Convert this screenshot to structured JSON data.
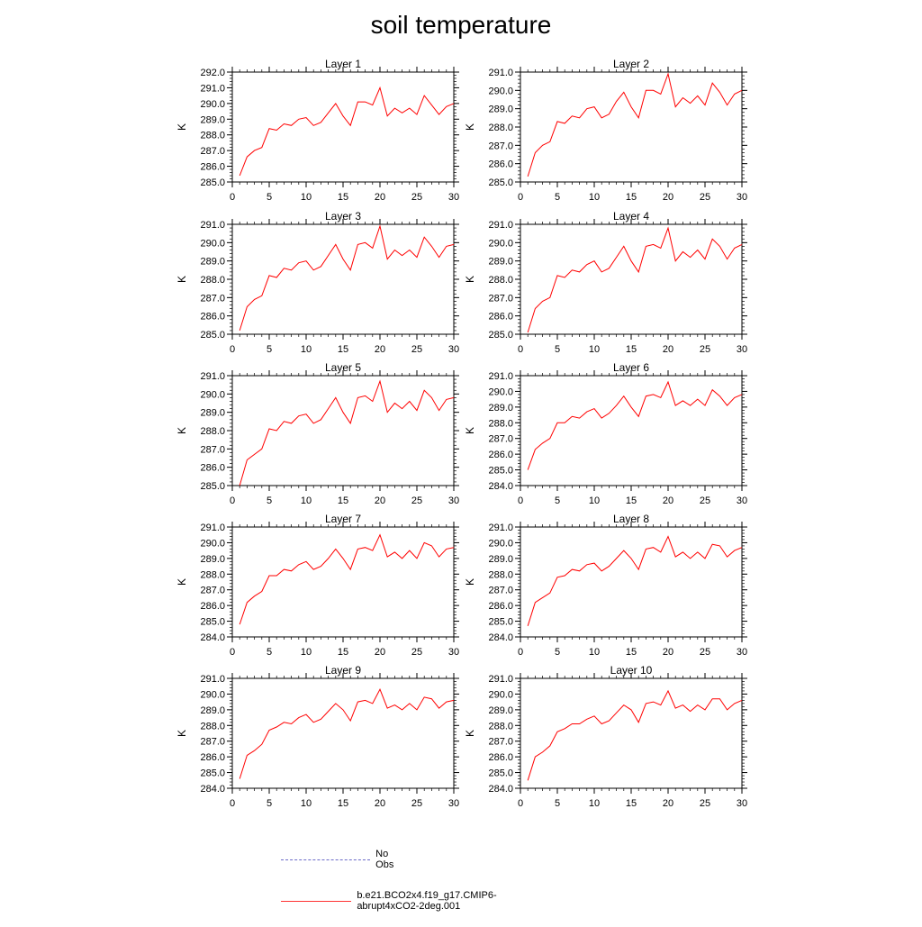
{
  "title": "soil temperature",
  "legend": {
    "obs_label": "No Obs",
    "model_label": "b.e21.BCO2x4.f19_g17.CMIP6-abrupt4xCO2-2deg.001",
    "obs_color": "#6a6ac8",
    "model_color": "#ff0000"
  },
  "chart_data": [
    {
      "type": "line",
      "title": "Layer 1",
      "ylabel": "K",
      "xlim": [
        0,
        30
      ],
      "ylim": [
        285,
        292
      ],
      "xticks": [
        0,
        5,
        10,
        15,
        20,
        25,
        30
      ],
      "yticks": [
        "285.0",
        "286.0",
        "287.0",
        "288.0",
        "289.0",
        "290.0",
        "291.0",
        "292.0"
      ],
      "x": [
        1,
        2,
        3,
        4,
        5,
        6,
        7,
        8,
        9,
        10,
        11,
        12,
        13,
        14,
        15,
        16,
        17,
        18,
        19,
        20,
        21,
        22,
        23,
        24,
        25,
        26,
        27,
        28,
        29,
        30
      ],
      "series": [
        {
          "values": [
            285.4,
            286.6,
            287.0,
            287.2,
            288.4,
            288.3,
            288.7,
            288.6,
            289.0,
            289.1,
            288.6,
            288.8,
            289.4,
            290.0,
            289.2,
            288.6,
            290.1,
            290.1,
            289.9,
            291.0,
            289.2,
            289.7,
            289.4,
            289.7,
            289.3,
            290.5,
            289.9,
            289.3,
            289.8,
            290.0
          ]
        }
      ]
    },
    {
      "type": "line",
      "title": "Layer 2",
      "ylabel": "K",
      "xlim": [
        0,
        30
      ],
      "ylim": [
        285,
        291
      ],
      "xticks": [
        0,
        5,
        10,
        15,
        20,
        25,
        30
      ],
      "yticks": [
        "285.0",
        "286.0",
        "287.0",
        "288.0",
        "289.0",
        "290.0",
        "291.0"
      ],
      "x": [
        1,
        2,
        3,
        4,
        5,
        6,
        7,
        8,
        9,
        10,
        11,
        12,
        13,
        14,
        15,
        16,
        17,
        18,
        19,
        20,
        21,
        22,
        23,
        24,
        25,
        26,
        27,
        28,
        29,
        30
      ],
      "series": [
        {
          "values": [
            285.3,
            286.6,
            287.0,
            287.2,
            288.3,
            288.2,
            288.6,
            288.5,
            289.0,
            289.1,
            288.5,
            288.7,
            289.4,
            289.9,
            289.1,
            288.5,
            290.0,
            290.0,
            289.8,
            290.9,
            289.1,
            289.6,
            289.3,
            289.7,
            289.2,
            290.4,
            289.9,
            289.2,
            289.8,
            290.0
          ]
        }
      ]
    },
    {
      "type": "line",
      "title": "Layer 3",
      "ylabel": "K",
      "xlim": [
        0,
        30
      ],
      "ylim": [
        285,
        291
      ],
      "xticks": [
        0,
        5,
        10,
        15,
        20,
        25,
        30
      ],
      "yticks": [
        "285.0",
        "286.0",
        "287.0",
        "288.0",
        "289.0",
        "290.0",
        "291.0"
      ],
      "x": [
        1,
        2,
        3,
        4,
        5,
        6,
        7,
        8,
        9,
        10,
        11,
        12,
        13,
        14,
        15,
        16,
        17,
        18,
        19,
        20,
        21,
        22,
        23,
        24,
        25,
        26,
        27,
        28,
        29,
        30
      ],
      "series": [
        {
          "values": [
            285.2,
            286.5,
            286.9,
            287.1,
            288.2,
            288.1,
            288.6,
            288.5,
            288.9,
            289.0,
            288.5,
            288.7,
            289.3,
            289.9,
            289.1,
            288.5,
            289.9,
            290.0,
            289.7,
            290.9,
            289.1,
            289.6,
            289.3,
            289.6,
            289.2,
            290.3,
            289.8,
            289.2,
            289.8,
            289.9
          ]
        }
      ]
    },
    {
      "type": "line",
      "title": "Layer 4",
      "ylabel": "K",
      "xlim": [
        0,
        30
      ],
      "ylim": [
        285,
        291
      ],
      "xticks": [
        0,
        5,
        10,
        15,
        20,
        25,
        30
      ],
      "yticks": [
        "285.0",
        "286.0",
        "287.0",
        "288.0",
        "289.0",
        "290.0",
        "291.0"
      ],
      "x": [
        1,
        2,
        3,
        4,
        5,
        6,
        7,
        8,
        9,
        10,
        11,
        12,
        13,
        14,
        15,
        16,
        17,
        18,
        19,
        20,
        21,
        22,
        23,
        24,
        25,
        26,
        27,
        28,
        29,
        30
      ],
      "series": [
        {
          "values": [
            285.1,
            286.4,
            286.8,
            287.0,
            288.2,
            288.1,
            288.5,
            288.4,
            288.8,
            289.0,
            288.4,
            288.6,
            289.2,
            289.8,
            289.0,
            288.4,
            289.8,
            289.9,
            289.7,
            290.8,
            289.0,
            289.5,
            289.2,
            289.6,
            289.1,
            290.2,
            289.8,
            289.1,
            289.7,
            289.9
          ]
        }
      ]
    },
    {
      "type": "line",
      "title": "Layer 5",
      "ylabel": "K",
      "xlim": [
        0,
        30
      ],
      "ylim": [
        285,
        291
      ],
      "xticks": [
        0,
        5,
        10,
        15,
        20,
        25,
        30
      ],
      "yticks": [
        "285.0",
        "286.0",
        "287.0",
        "288.0",
        "289.0",
        "290.0",
        "291.0"
      ],
      "x": [
        1,
        2,
        3,
        4,
        5,
        6,
        7,
        8,
        9,
        10,
        11,
        12,
        13,
        14,
        15,
        16,
        17,
        18,
        19,
        20,
        21,
        22,
        23,
        24,
        25,
        26,
        27,
        28,
        29,
        30
      ],
      "series": [
        {
          "values": [
            285.0,
            286.4,
            286.7,
            287.0,
            288.1,
            288.0,
            288.5,
            288.4,
            288.8,
            288.9,
            288.4,
            288.6,
            289.2,
            289.8,
            289.0,
            288.4,
            289.8,
            289.9,
            289.6,
            290.7,
            289.0,
            289.5,
            289.2,
            289.6,
            289.1,
            290.2,
            289.8,
            289.1,
            289.7,
            289.8
          ]
        }
      ]
    },
    {
      "type": "line",
      "title": "Layer 6",
      "ylabel": "K",
      "xlim": [
        0,
        30
      ],
      "ylim": [
        284,
        291
      ],
      "xticks": [
        0,
        5,
        10,
        15,
        20,
        25,
        30
      ],
      "yticks": [
        "284.0",
        "285.0",
        "286.0",
        "287.0",
        "288.0",
        "289.0",
        "290.0",
        "291.0"
      ],
      "x": [
        1,
        2,
        3,
        4,
        5,
        6,
        7,
        8,
        9,
        10,
        11,
        12,
        13,
        14,
        15,
        16,
        17,
        18,
        19,
        20,
        21,
        22,
        23,
        24,
        25,
        26,
        27,
        28,
        29,
        30
      ],
      "series": [
        {
          "values": [
            285.0,
            286.3,
            286.7,
            287.0,
            288.0,
            288.0,
            288.4,
            288.3,
            288.7,
            288.9,
            288.3,
            288.6,
            289.1,
            289.7,
            289.0,
            288.4,
            289.7,
            289.8,
            289.6,
            290.6,
            289.1,
            289.4,
            289.1,
            289.5,
            289.1,
            290.1,
            289.7,
            289.1,
            289.6,
            289.8
          ]
        }
      ]
    },
    {
      "type": "line",
      "title": "Layer 7",
      "ylabel": "K",
      "xlim": [
        0,
        30
      ],
      "ylim": [
        284,
        291
      ],
      "xticks": [
        0,
        5,
        10,
        15,
        20,
        25,
        30
      ],
      "yticks": [
        "284.0",
        "285.0",
        "286.0",
        "287.0",
        "288.0",
        "289.0",
        "290.0",
        "291.0"
      ],
      "x": [
        1,
        2,
        3,
        4,
        5,
        6,
        7,
        8,
        9,
        10,
        11,
        12,
        13,
        14,
        15,
        16,
        17,
        18,
        19,
        20,
        21,
        22,
        23,
        24,
        25,
        26,
        27,
        28,
        29,
        30
      ],
      "series": [
        {
          "values": [
            284.8,
            286.2,
            286.6,
            286.9,
            287.9,
            287.9,
            288.3,
            288.2,
            288.6,
            288.8,
            288.3,
            288.5,
            289.0,
            289.6,
            289.0,
            288.3,
            289.6,
            289.7,
            289.5,
            290.5,
            289.1,
            289.4,
            289.0,
            289.5,
            289.0,
            290.0,
            289.8,
            289.1,
            289.6,
            289.7
          ]
        }
      ]
    },
    {
      "type": "line",
      "title": "Layer 8",
      "ylabel": "K",
      "xlim": [
        0,
        30
      ],
      "ylim": [
        284,
        291
      ],
      "xticks": [
        0,
        5,
        10,
        15,
        20,
        25,
        30
      ],
      "yticks": [
        "284.0",
        "285.0",
        "286.0",
        "287.0",
        "288.0",
        "289.0",
        "290.0",
        "291.0"
      ],
      "x": [
        1,
        2,
        3,
        4,
        5,
        6,
        7,
        8,
        9,
        10,
        11,
        12,
        13,
        14,
        15,
        16,
        17,
        18,
        19,
        20,
        21,
        22,
        23,
        24,
        25,
        26,
        27,
        28,
        29,
        30
      ],
      "series": [
        {
          "values": [
            284.7,
            286.2,
            286.5,
            286.8,
            287.8,
            287.9,
            288.3,
            288.2,
            288.6,
            288.7,
            288.2,
            288.5,
            289.0,
            289.5,
            289.0,
            288.3,
            289.6,
            289.7,
            289.4,
            290.4,
            289.1,
            289.4,
            289.0,
            289.4,
            289.0,
            289.9,
            289.8,
            289.1,
            289.5,
            289.7
          ]
        }
      ]
    },
    {
      "type": "line",
      "title": "Layer 9",
      "ylabel": "K",
      "xlim": [
        0,
        30
      ],
      "ylim": [
        284,
        291
      ],
      "xticks": [
        0,
        5,
        10,
        15,
        20,
        25,
        30
      ],
      "yticks": [
        "284.0",
        "285.0",
        "286.0",
        "287.0",
        "288.0",
        "289.0",
        "290.0",
        "291.0"
      ],
      "x": [
        1,
        2,
        3,
        4,
        5,
        6,
        7,
        8,
        9,
        10,
        11,
        12,
        13,
        14,
        15,
        16,
        17,
        18,
        19,
        20,
        21,
        22,
        23,
        24,
        25,
        26,
        27,
        28,
        29,
        30
      ],
      "series": [
        {
          "values": [
            284.6,
            286.1,
            286.4,
            286.8,
            287.7,
            287.9,
            288.2,
            288.1,
            288.5,
            288.7,
            288.2,
            288.4,
            288.9,
            289.4,
            289.0,
            288.3,
            289.5,
            289.6,
            289.4,
            290.3,
            289.1,
            289.3,
            289.0,
            289.4,
            289.0,
            289.8,
            289.7,
            289.1,
            289.5,
            289.6
          ]
        }
      ]
    },
    {
      "type": "line",
      "title": "Layer 10",
      "ylabel": "K",
      "xlim": [
        0,
        30
      ],
      "ylim": [
        284,
        291
      ],
      "xticks": [
        0,
        5,
        10,
        15,
        20,
        25,
        30
      ],
      "yticks": [
        "284.0",
        "285.0",
        "286.0",
        "287.0",
        "288.0",
        "289.0",
        "290.0",
        "291.0"
      ],
      "x": [
        1,
        2,
        3,
        4,
        5,
        6,
        7,
        8,
        9,
        10,
        11,
        12,
        13,
        14,
        15,
        16,
        17,
        18,
        19,
        20,
        21,
        22,
        23,
        24,
        25,
        26,
        27,
        28,
        29,
        30
      ],
      "series": [
        {
          "values": [
            284.5,
            286.0,
            286.3,
            286.7,
            287.6,
            287.8,
            288.1,
            288.1,
            288.4,
            288.6,
            288.1,
            288.3,
            288.8,
            289.3,
            289.0,
            288.2,
            289.4,
            289.5,
            289.3,
            290.2,
            289.1,
            289.3,
            288.9,
            289.3,
            289.0,
            289.7,
            289.7,
            289.0,
            289.4,
            289.6
          ]
        }
      ]
    }
  ]
}
